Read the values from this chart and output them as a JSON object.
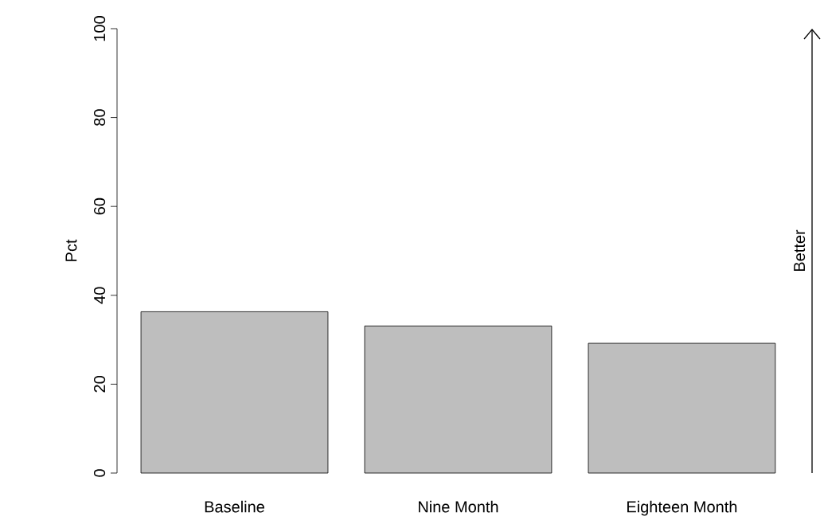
{
  "chart_data": {
    "type": "bar",
    "ylabel": "Pct",
    "categories": [
      "Baseline",
      "Nine Month",
      "Eighteen Month"
    ],
    "values": [
      36.3,
      33.1,
      29.2
    ],
    "color": "#bebebe",
    "ylim": [
      0,
      100
    ],
    "yticks": [
      0,
      20,
      40,
      60,
      80,
      100
    ],
    "grid": false,
    "annotations": [
      "Better"
    ]
  }
}
